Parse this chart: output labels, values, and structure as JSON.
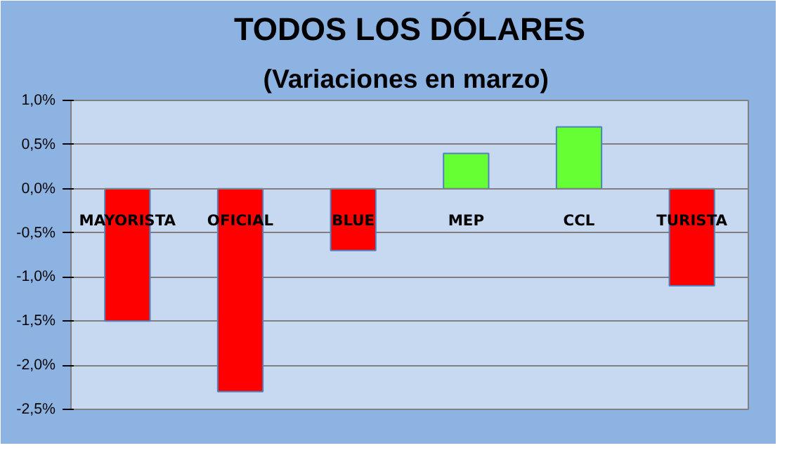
{
  "chart_data": {
    "type": "bar",
    "title": "TODOS LOS DÓLARES",
    "subtitle": "(Variaciones  en marzo)",
    "categories": [
      "MAYORISTA",
      "OFICIAL",
      "BLUE",
      "MEP",
      "CCL",
      "TURISTA"
    ],
    "values": [
      -1.5,
      -2.3,
      -0.7,
      0.4,
      0.7,
      -1.1
    ],
    "colors": [
      "#ff0000",
      "#ff0000",
      "#ff0000",
      "#66ff33",
      "#66ff33",
      "#ff0000"
    ],
    "ylim": [
      -2.5,
      1.0
    ],
    "yticks": [
      {
        "value": 1.0,
        "label": "1,0%"
      },
      {
        "value": 0.5,
        "label": "0,5%"
      },
      {
        "value": 0.0,
        "label": "0,0%"
      },
      {
        "value": -0.5,
        "label": "-0,5%"
      },
      {
        "value": -1.0,
        "label": "-1,0%"
      },
      {
        "value": -1.5,
        "label": "-1,5%"
      },
      {
        "value": -2.0,
        "label": "-2,0%"
      },
      {
        "value": -2.5,
        "label": "-2,5%"
      }
    ],
    "grid": "y"
  }
}
